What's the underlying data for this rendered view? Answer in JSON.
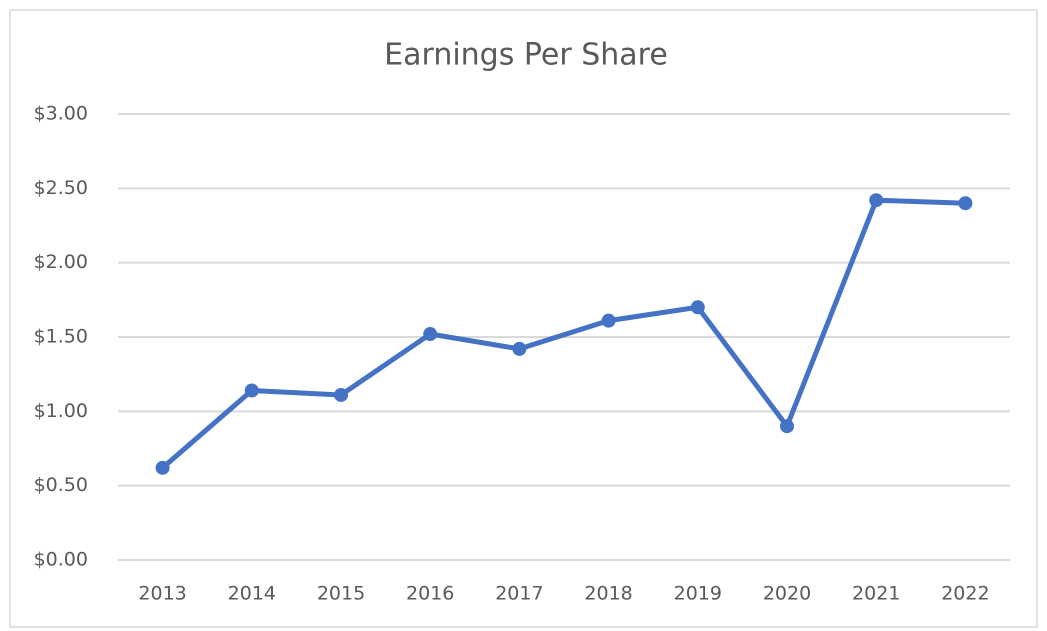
{
  "chart_data": {
    "type": "line",
    "title": "Earnings Per Share",
    "categories": [
      "2013",
      "2014",
      "2015",
      "2016",
      "2017",
      "2018",
      "2019",
      "2020",
      "2021",
      "2022"
    ],
    "series": [
      {
        "name": "Earnings Per Share",
        "color": "#4472c4",
        "values": [
          0.62,
          1.14,
          1.11,
          1.52,
          1.42,
          1.61,
          1.7,
          0.9,
          2.42,
          2.4
        ]
      }
    ],
    "ylim": [
      0,
      3
    ],
    "yticks": [
      {
        "value": 0,
        "label": "$0.00"
      },
      {
        "value": 0.5,
        "label": "$0.50"
      },
      {
        "value": 1,
        "label": "$1.00"
      },
      {
        "value": 1.5,
        "label": "$1.50"
      },
      {
        "value": 2,
        "label": "$2.00"
      },
      {
        "value": 2.5,
        "label": "$2.50"
      },
      {
        "value": 3,
        "label": "$3.00"
      }
    ],
    "grid": true
  }
}
